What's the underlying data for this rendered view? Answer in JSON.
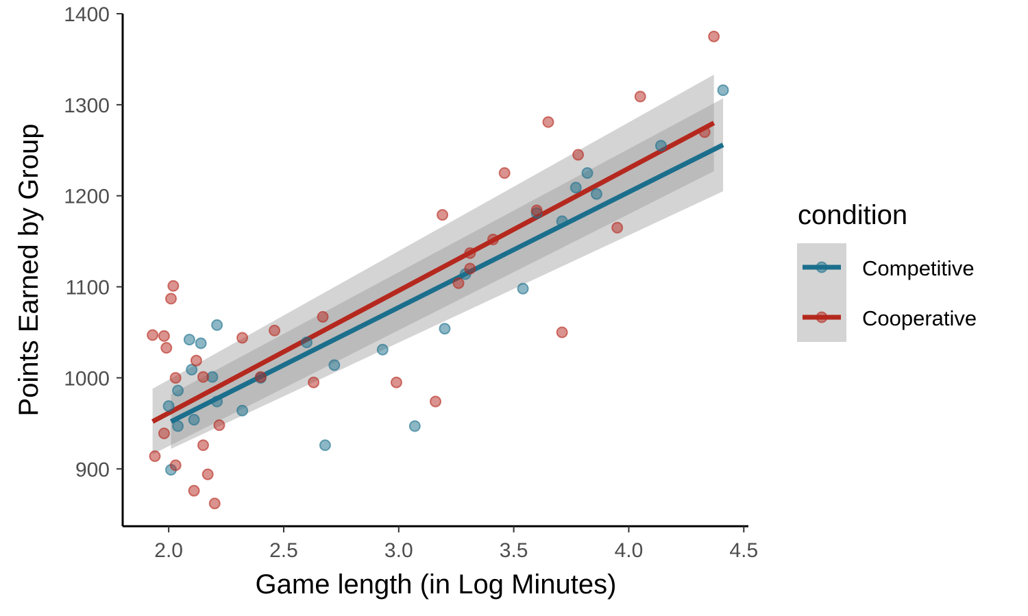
{
  "chart_data": {
    "type": "scatter",
    "xlabel": "Game length (in Log Minutes)",
    "ylabel": "Points Earned by Group",
    "xlim": [
      1.8,
      4.52
    ],
    "ylim": [
      837,
      1400
    ],
    "x_ticks": [
      2.0,
      2.5,
      3.0,
      3.5,
      4.0,
      4.5
    ],
    "x_tick_labels": [
      "2.0",
      "2.5",
      "3.0",
      "3.5",
      "4.0",
      "4.5"
    ],
    "y_ticks": [
      900,
      1000,
      1100,
      1200,
      1300,
      1400
    ],
    "y_tick_labels": [
      "900",
      "1000",
      "1100",
      "1200",
      "1300",
      "1400"
    ],
    "grid": false,
    "legend": {
      "title": "condition",
      "placement": "right",
      "entries": [
        "Competitive",
        "Cooperative"
      ]
    },
    "series": [
      {
        "name": "Competitive",
        "color": "#1b6f8c",
        "points": [
          [
            2.0,
            969
          ],
          [
            2.01,
            899
          ],
          [
            2.04,
            986
          ],
          [
            2.04,
            947
          ],
          [
            2.09,
            1042
          ],
          [
            2.1,
            1009
          ],
          [
            2.11,
            954
          ],
          [
            2.14,
            1038
          ],
          [
            2.19,
            1001
          ],
          [
            2.21,
            1058
          ],
          [
            2.21,
            974
          ],
          [
            2.32,
            964
          ],
          [
            2.4,
            1000
          ],
          [
            2.6,
            1039
          ],
          [
            2.68,
            926
          ],
          [
            2.72,
            1014
          ],
          [
            2.93,
            1031
          ],
          [
            3.07,
            947
          ],
          [
            3.2,
            1054
          ],
          [
            3.29,
            1114
          ],
          [
            3.54,
            1098
          ],
          [
            3.6,
            1181
          ],
          [
            3.71,
            1172
          ],
          [
            3.77,
            1209
          ],
          [
            3.82,
            1225
          ],
          [
            3.86,
            1202
          ],
          [
            4.14,
            1255
          ],
          [
            4.41,
            1316
          ]
        ],
        "fit": {
          "x": [
            2.01,
            4.41
          ],
          "y": [
            952,
            1256
          ]
        },
        "ci": {
          "x": [
            2.01,
            4.41
          ],
          "lower": [
            922,
            1205
          ],
          "upper": [
            982,
            1307
          ]
        }
      },
      {
        "name": "Cooperative",
        "color": "#b5281e",
        "points": [
          [
            1.93,
            1047
          ],
          [
            1.94,
            914
          ],
          [
            1.98,
            1046
          ],
          [
            1.98,
            939
          ],
          [
            1.99,
            1033
          ],
          [
            2.01,
            1087
          ],
          [
            2.02,
            1101
          ],
          [
            2.03,
            1000
          ],
          [
            2.03,
            904
          ],
          [
            2.11,
            876
          ],
          [
            2.12,
            1019
          ],
          [
            2.15,
            1001
          ],
          [
            2.15,
            926
          ],
          [
            2.17,
            894
          ],
          [
            2.2,
            862
          ],
          [
            2.22,
            948
          ],
          [
            2.32,
            1044
          ],
          [
            2.4,
            1001
          ],
          [
            2.46,
            1052
          ],
          [
            2.63,
            995
          ],
          [
            2.67,
            1067
          ],
          [
            2.99,
            995
          ],
          [
            3.16,
            974
          ],
          [
            3.19,
            1179
          ],
          [
            3.26,
            1104
          ],
          [
            3.31,
            1137
          ],
          [
            3.31,
            1120
          ],
          [
            3.41,
            1152
          ],
          [
            3.46,
            1225
          ],
          [
            3.6,
            1184
          ],
          [
            3.65,
            1281
          ],
          [
            3.71,
            1050
          ],
          [
            3.78,
            1245
          ],
          [
            3.95,
            1165
          ],
          [
            4.05,
            1309
          ],
          [
            4.33,
            1270
          ],
          [
            4.37,
            1375
          ]
        ],
        "fit": {
          "x": [
            1.93,
            4.37
          ],
          "y": [
            952,
            1280
          ]
        },
        "ci": {
          "x": [
            1.93,
            4.37
          ],
          "lower": [
            916,
            1227
          ],
          "upper": [
            988,
            1333
          ]
        }
      }
    ]
  }
}
